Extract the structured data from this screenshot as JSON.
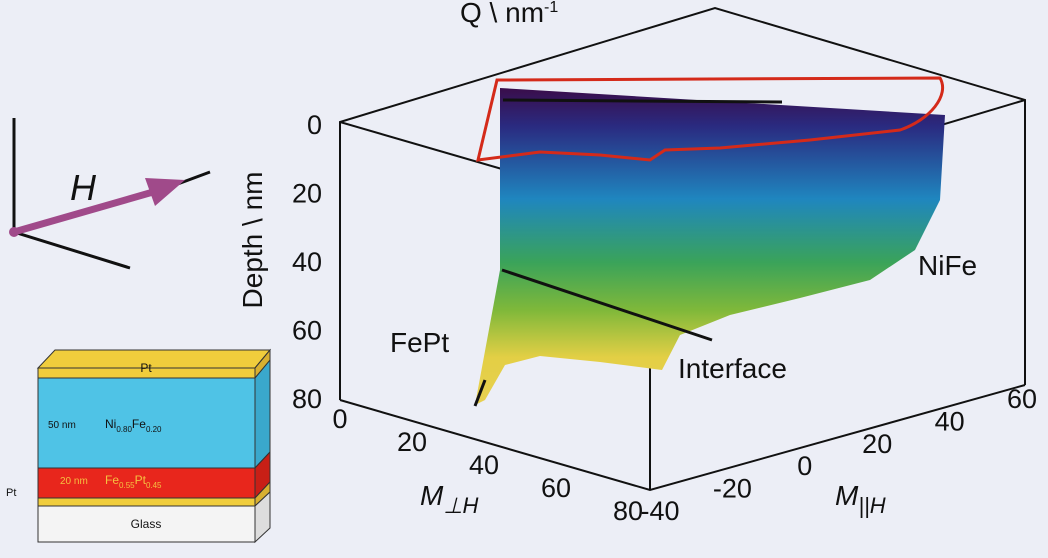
{
  "top_axis_label": {
    "text": "Q \\ nm",
    "sup": "-1"
  },
  "depth_axis": {
    "label": "Depth \\ nm",
    "ticks": [
      "0",
      "20",
      "40",
      "60",
      "80"
    ]
  },
  "perp_axis": {
    "symbol": "M",
    "sub": "⊥H",
    "ticks": [
      "0",
      "20",
      "40",
      "60",
      "80"
    ]
  },
  "par_axis": {
    "symbol": "M",
    "sub": "||H",
    "ticks": [
      "-40",
      "-20",
      "0",
      "20",
      "40",
      "60"
    ]
  },
  "regions": {
    "fept": "FePt",
    "nife": "NiFe",
    "interface": "Interface"
  },
  "field_label": "H",
  "stack": {
    "top": "Pt",
    "nife": {
      "thickness": "50 nm",
      "a": "Ni",
      "a_sub": "0.80",
      "b": "Fe",
      "b_sub": "0.20"
    },
    "fept": {
      "thickness": "20 nm",
      "a": "Fe",
      "a_sub": "0.55",
      "b": "Pt",
      "b_sub": "0.45"
    },
    "bottom": "Pt",
    "substrate": "Glass"
  }
}
